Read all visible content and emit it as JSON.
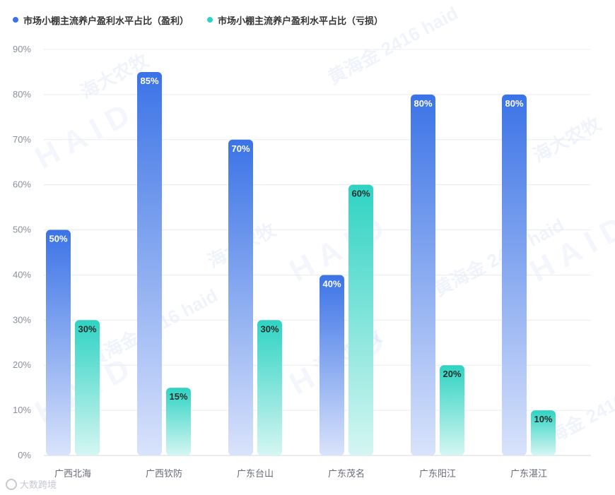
{
  "legend": {
    "items": [
      {
        "label": "市场小棚主流养户盈利水平占比（盈利）",
        "color": "#3b73e6"
      },
      {
        "label": "市场小棚主流养户盈利水平占比（亏损）",
        "color": "#2fd3c3"
      }
    ]
  },
  "watermark": {
    "brand": "海大农牧",
    "text": "黄海金 2416 haid",
    "logo_text": "HAID"
  },
  "source": {
    "text": "大数跨境",
    "icon": "source-logo-icon"
  },
  "chart_data": {
    "type": "bar",
    "categories": [
      "广西北海",
      "广西钦防",
      "广东台山",
      "广东茂名",
      "广东阳江",
      "广东湛江"
    ],
    "series": [
      {
        "name": "市场小棚主流养户盈利水平占比（盈利）",
        "values": [
          50,
          85,
          70,
          40,
          80,
          80
        ],
        "color_top": "#3b73e6",
        "color_bottom": "#d9e3fb",
        "label_color": "#ffffff"
      },
      {
        "name": "市场小棚主流养户盈利水平占比（亏损）",
        "values": [
          30,
          15,
          30,
          60,
          20,
          10
        ],
        "color_top": "#2fd3c3",
        "color_bottom": "#d5f6f2",
        "label_color": "#1f2d2b"
      }
    ],
    "ylim": [
      0,
      90
    ],
    "yticks": [
      "0%",
      "10%",
      "20%",
      "30%",
      "40%",
      "50%",
      "60%",
      "70%",
      "80%",
      "90%"
    ],
    "value_suffix": "%",
    "grid": true,
    "legend_position": "top-left"
  }
}
